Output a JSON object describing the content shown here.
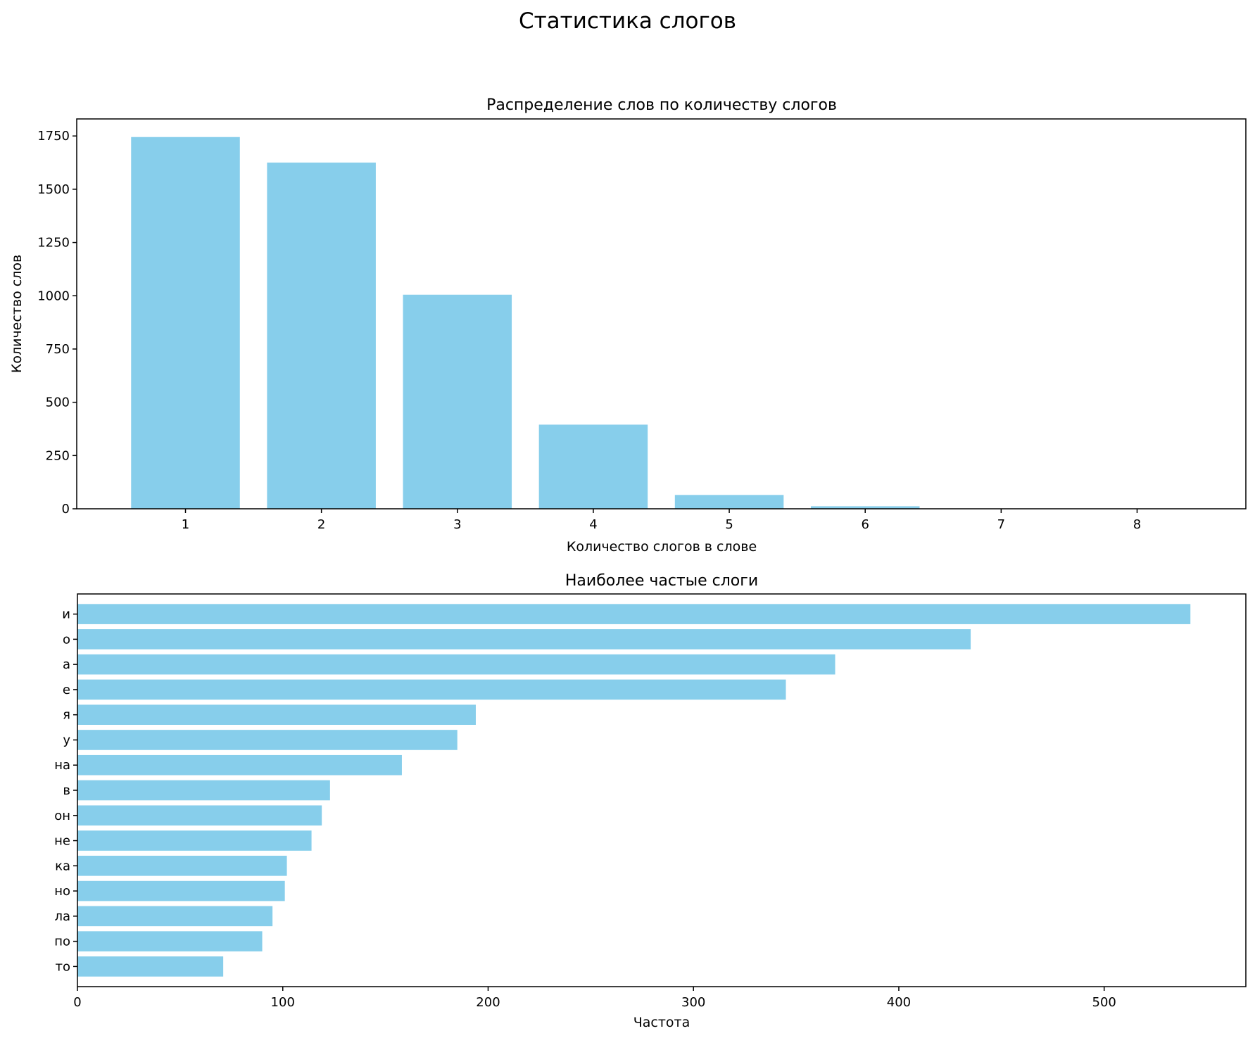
{
  "title": "Статистика слогов",
  "bar_color": "#87ceeb",
  "chart_data": [
    {
      "type": "bar",
      "title": "Распределение слов по количеству слогов",
      "xlabel": "Количество слогов в слове",
      "ylabel": "Количество слов",
      "categories": [
        "1",
        "2",
        "3",
        "4",
        "5",
        "6",
        "7",
        "8"
      ],
      "values": [
        1745,
        1625,
        1005,
        395,
        65,
        12,
        1,
        1
      ],
      "ylim": [
        0,
        1830
      ],
      "yticks": [
        0,
        250,
        500,
        750,
        1000,
        1250,
        1500,
        1750
      ],
      "grid": false
    },
    {
      "type": "barh",
      "title": "Наиболее частые слоги",
      "xlabel": "Частота",
      "ylabel": "",
      "categories": [
        "и",
        "о",
        "а",
        "е",
        "я",
        "у",
        "на",
        "в",
        "он",
        "не",
        "ка",
        "но",
        "ла",
        "по",
        "то"
      ],
      "values": [
        542,
        435,
        369,
        345,
        194,
        185,
        158,
        123,
        119,
        114,
        102,
        101,
        95,
        90,
        71
      ],
      "xlim": [
        0,
        569
      ],
      "xticks": [
        0,
        100,
        200,
        300,
        400,
        500
      ],
      "grid": false
    }
  ]
}
